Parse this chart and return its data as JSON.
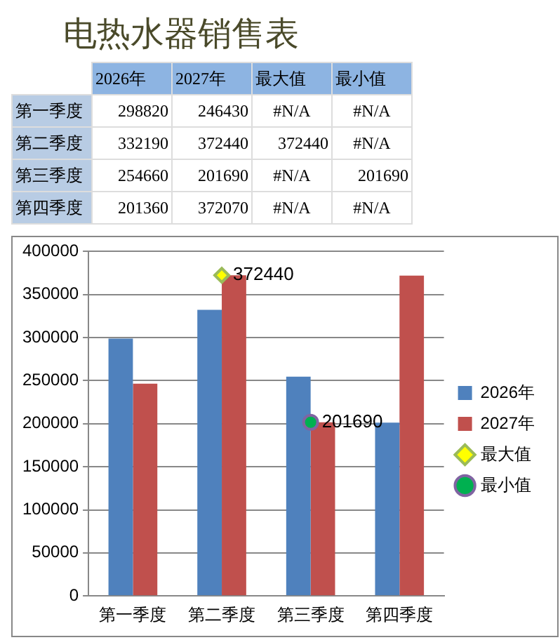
{
  "chart_data": [
    {
      "type": "other",
      "title": "电热水器销售表",
      "categories": [
        "第一季度",
        "第二季度",
        "第三季度",
        "第四季度"
      ],
      "series": [
        {
          "name": "2026年",
          "values": [
            298820,
            332190,
            254660,
            201360
          ]
        },
        {
          "name": "2027年",
          "values": [
            246430,
            372440,
            201690,
            372070
          ]
        },
        {
          "name": "最大值",
          "values": [
            null,
            372440,
            null,
            null
          ],
          "value_labels": [
            "#N/A",
            "372440",
            "#N/A",
            "#N/A"
          ]
        },
        {
          "name": "最小值",
          "values": [
            null,
            null,
            201690,
            null
          ],
          "value_labels": [
            "#N/A",
            "#N/A",
            "201690",
            "#N/A"
          ]
        }
      ],
      "data_labels": true
    },
    {
      "type": "bar",
      "categories": [
        "第一季度",
        "第二季度",
        "第三季度",
        "第四季度"
      ],
      "series": [
        {
          "name": "2026年",
          "color": "#4f81bd",
          "values": [
            298820,
            332190,
            254660,
            201360
          ]
        },
        {
          "name": "2027年",
          "color": "#c0504d",
          "values": [
            246430,
            372440,
            201690,
            372070
          ]
        },
        {
          "name": "最大值",
          "type": "line",
          "marker": "diamond",
          "color": "#ffff00",
          "values": [
            null,
            372440,
            null,
            null
          ],
          "value_labels": [
            null,
            "372440",
            null,
            null
          ]
        },
        {
          "name": "最小值",
          "type": "line",
          "marker": "circle",
          "color": "#00b050",
          "values": [
            null,
            null,
            201690,
            null
          ],
          "value_labels": [
            null,
            null,
            "201690",
            null
          ]
        }
      ],
      "ylim": [
        0,
        400000
      ],
      "yticks": [
        0,
        50000,
        100000,
        150000,
        200000,
        250000,
        300000,
        350000,
        400000
      ],
      "grid": "y",
      "legend": "right"
    }
  ]
}
